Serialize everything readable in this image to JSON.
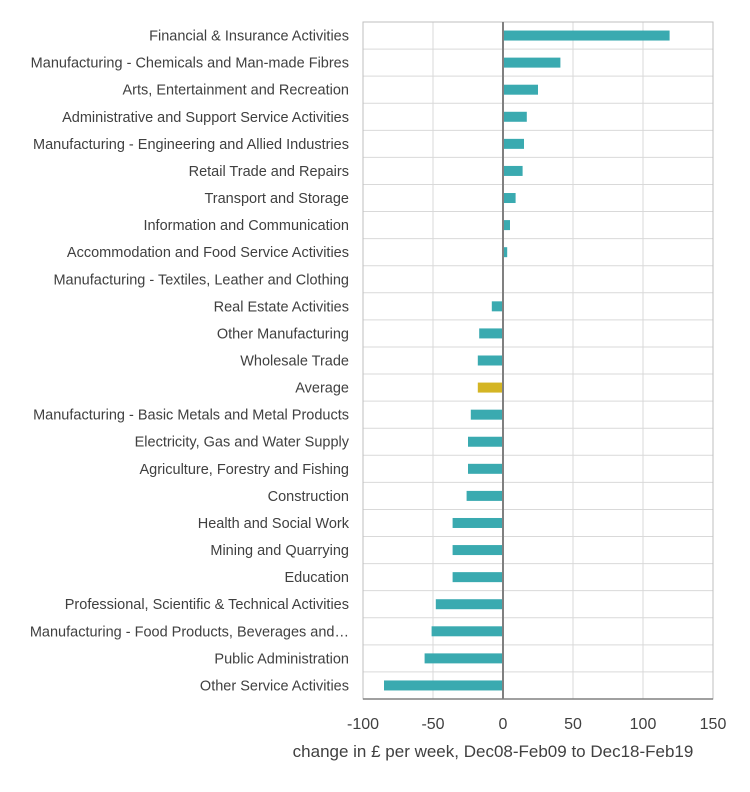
{
  "chart_data": {
    "type": "bar",
    "orientation": "horizontal",
    "categories": [
      "Financial & Insurance Activities",
      "Manufacturing - Chemicals and Man-made Fibres",
      "Arts, Entertainment and Recreation",
      "Administrative and Support Service Activities",
      "Manufacturing - Engineering and Allied Industries",
      "Retail Trade and Repairs",
      "Transport and Storage",
      "Information and Communication",
      "Accommodation and Food Service Activities",
      "Manufacturing - Textiles, Leather and Clothing",
      "Real Estate Activities",
      "Other Manufacturing",
      "Wholesale Trade",
      "Average",
      "Manufacturing - Basic Metals and Metal Products",
      "Electricity, Gas and Water Supply",
      "Agriculture, Forestry and Fishing",
      "Construction",
      "Health and Social Work",
      "Mining and Quarrying",
      "Education",
      "Professional, Scientific & Technical Activities",
      "Manufacturing - Food Products, Beverages and…",
      "Public Administration",
      "Other Service Activities"
    ],
    "values": [
      119,
      41,
      25,
      17,
      15,
      14,
      9,
      5,
      3,
      0,
      -8,
      -17,
      -18,
      -18,
      -23,
      -25,
      -25,
      -26,
      -36,
      -36,
      -36,
      -48,
      -51,
      -56,
      -85
    ],
    "highlight_category": "Average",
    "colors": {
      "bar": "#3aaab0",
      "highlight": "#d4b524"
    },
    "title": "",
    "xlabel": "change in £ per week, Dec08-Feb09 to Dec18-Feb19",
    "ylabel": "",
    "xlim": [
      -100,
      150
    ],
    "xticks": [
      -100,
      -50,
      0,
      50,
      100,
      150
    ],
    "grid": true,
    "legend": "none"
  }
}
